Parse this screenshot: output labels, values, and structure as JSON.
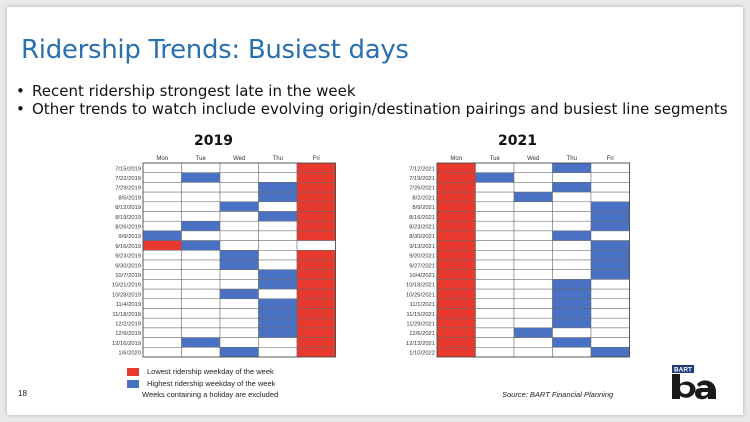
{
  "slide": {
    "title": "Ridership Trends: Busiest days",
    "bullets": [
      "Recent ridership strongest late in the week",
      "Other trends to watch include evolving origin/destination pairings and busiest line segments"
    ],
    "page_number": "18",
    "source": "Source: BART Financial Planning",
    "logo_text": "BART"
  },
  "legend": {
    "lowest_label": "Lowest ridership weekday of the week",
    "highest_label": "Highest ridership weekday of the week",
    "note": "Weeks containing a holiday are excluded",
    "colors": {
      "lowest": "#e8392f",
      "highest": "#4a72c4",
      "empty": "#ffffff"
    }
  },
  "chart_data": [
    {
      "type": "table",
      "title": "2019",
      "columns": [
        "Mon",
        "Tue",
        "Wed",
        "Thu",
        "Fri"
      ],
      "rows": [
        {
          "week": "7/15/2019",
          "cells": [
            "",
            "",
            "",
            "",
            "L"
          ]
        },
        {
          "week": "7/22/2019",
          "cells": [
            "",
            "H",
            "",
            "",
            "L"
          ]
        },
        {
          "week": "7/29/2019",
          "cells": [
            "",
            "",
            "",
            "H",
            "L"
          ]
        },
        {
          "week": "8/5/2019",
          "cells": [
            "",
            "",
            "",
            "H",
            "L"
          ]
        },
        {
          "week": "8/12/2019",
          "cells": [
            "",
            "",
            "H",
            "",
            "L"
          ]
        },
        {
          "week": "8/19/2019",
          "cells": [
            "",
            "",
            "",
            "H",
            "L"
          ]
        },
        {
          "week": "8/26/2019",
          "cells": [
            "",
            "H",
            "",
            "",
            "L"
          ]
        },
        {
          "week": "9/9/2019",
          "cells": [
            "H",
            "",
            "",
            "",
            "L"
          ]
        },
        {
          "week": "9/16/2019",
          "cells": [
            "L",
            "H",
            "",
            "",
            ""
          ]
        },
        {
          "week": "9/23/2019",
          "cells": [
            "",
            "",
            "H",
            "",
            "L"
          ]
        },
        {
          "week": "9/30/2019",
          "cells": [
            "",
            "",
            "H",
            "",
            "L"
          ]
        },
        {
          "week": "10/7/2019",
          "cells": [
            "",
            "",
            "",
            "H",
            "L"
          ]
        },
        {
          "week": "10/21/2019",
          "cells": [
            "",
            "",
            "",
            "H",
            "L"
          ]
        },
        {
          "week": "10/28/2019",
          "cells": [
            "",
            "",
            "H",
            "",
            "L"
          ]
        },
        {
          "week": "11/4/2019",
          "cells": [
            "",
            "",
            "",
            "H",
            "L"
          ]
        },
        {
          "week": "11/18/2019",
          "cells": [
            "",
            "",
            "",
            "H",
            "L"
          ]
        },
        {
          "week": "12/2/2019",
          "cells": [
            "",
            "",
            "",
            "H",
            "L"
          ]
        },
        {
          "week": "12/9/2019",
          "cells": [
            "",
            "",
            "",
            "H",
            "L"
          ]
        },
        {
          "week": "12/16/2019",
          "cells": [
            "",
            "H",
            "",
            "",
            "L"
          ]
        },
        {
          "week": "1/6/2020",
          "cells": [
            "",
            "",
            "H",
            "",
            "L"
          ]
        }
      ]
    },
    {
      "type": "table",
      "title": "2021",
      "columns": [
        "Mon",
        "Tue",
        "Wed",
        "Thu",
        "Fri"
      ],
      "rows": [
        {
          "week": "7/12/2021",
          "cells": [
            "L",
            "",
            "",
            "H",
            ""
          ]
        },
        {
          "week": "7/19/2021",
          "cells": [
            "L",
            "H",
            "",
            "",
            ""
          ]
        },
        {
          "week": "7/26/2021",
          "cells": [
            "L",
            "",
            "",
            "H",
            ""
          ]
        },
        {
          "week": "8/2/2021",
          "cells": [
            "L",
            "",
            "H",
            "",
            ""
          ]
        },
        {
          "week": "8/9/2021",
          "cells": [
            "L",
            "",
            "",
            "",
            "H"
          ]
        },
        {
          "week": "8/16/2021",
          "cells": [
            "L",
            "",
            "",
            "",
            "H"
          ]
        },
        {
          "week": "8/23/2021",
          "cells": [
            "L",
            "",
            "",
            "",
            "H"
          ]
        },
        {
          "week": "8/30/2021",
          "cells": [
            "L",
            "",
            "",
            "H",
            ""
          ]
        },
        {
          "week": "9/13/2021",
          "cells": [
            "L",
            "",
            "",
            "",
            "H"
          ]
        },
        {
          "week": "9/20/2021",
          "cells": [
            "L",
            "",
            "",
            "",
            "H"
          ]
        },
        {
          "week": "9/27/2021",
          "cells": [
            "L",
            "",
            "",
            "",
            "H"
          ]
        },
        {
          "week": "10/4/2021",
          "cells": [
            "L",
            "",
            "",
            "",
            "H"
          ]
        },
        {
          "week": "10/18/2021",
          "cells": [
            "L",
            "",
            "",
            "H",
            ""
          ]
        },
        {
          "week": "10/25/2021",
          "cells": [
            "L",
            "",
            "",
            "H",
            ""
          ]
        },
        {
          "week": "11/1/2021",
          "cells": [
            "L",
            "",
            "",
            "H",
            ""
          ]
        },
        {
          "week": "11/15/2021",
          "cells": [
            "L",
            "",
            "",
            "H",
            ""
          ]
        },
        {
          "week": "11/29/2021",
          "cells": [
            "L",
            "",
            "",
            "H",
            ""
          ]
        },
        {
          "week": "12/6/2021",
          "cells": [
            "L",
            "",
            "H",
            "",
            ""
          ]
        },
        {
          "week": "12/13/2021",
          "cells": [
            "L",
            "",
            "",
            "H",
            ""
          ]
        },
        {
          "week": "1/10/2022",
          "cells": [
            "L",
            "",
            "",
            "",
            "H"
          ]
        }
      ]
    }
  ]
}
